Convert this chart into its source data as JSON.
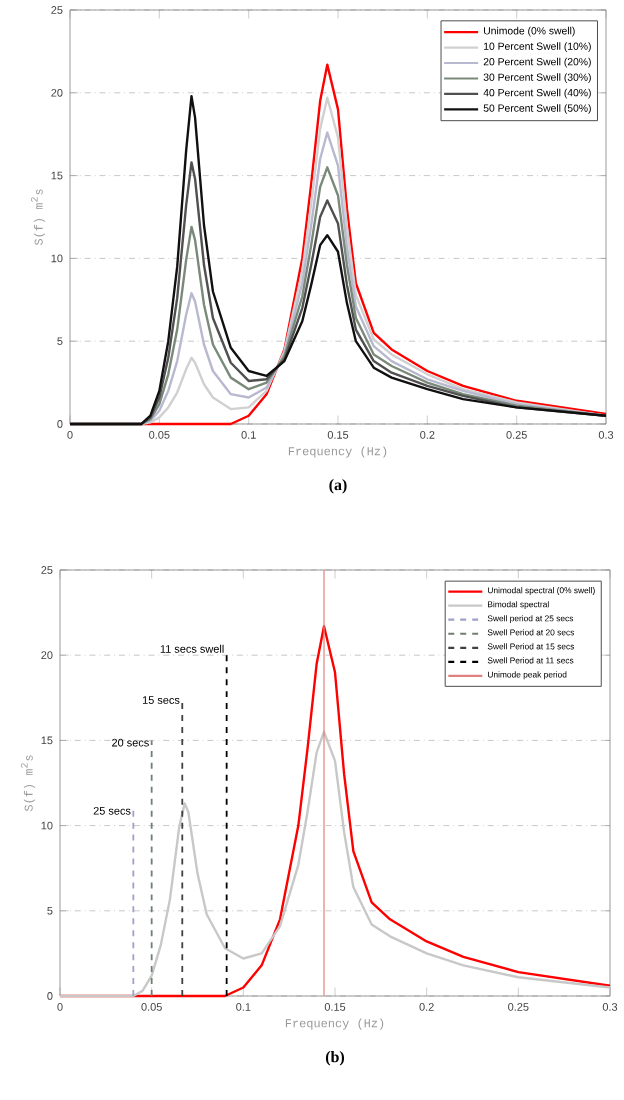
{
  "chart_data": [
    {
      "type": "line",
      "xlabel": "Frequency (Hz)",
      "ylabel": "S(f) m$^{2}$s",
      "annotations": [
        "(a)"
      ],
      "x": [
        0,
        0.04,
        0.045,
        0.05,
        0.055,
        0.06,
        0.065,
        0.068,
        0.07,
        0.075,
        0.08,
        0.09,
        0.1,
        0.11,
        0.12,
        0.13,
        0.135,
        0.14,
        0.144,
        0.15,
        0.155,
        0.16,
        0.17,
        0.18,
        0.2,
        0.22,
        0.25,
        0.3
      ],
      "xlim": [
        0,
        0.3
      ],
      "xticks": [
        0,
        0.05,
        0.1,
        0.15,
        0.2,
        0.25,
        0.3
      ],
      "ylim": [
        0,
        25
      ],
      "yticks": [
        0,
        5,
        10,
        15,
        20,
        25
      ],
      "grid": "y",
      "legend": "top right",
      "series": [
        {
          "name": "Unimode  (0% swell)",
          "color": "#ff0000",
          "values": [
            0,
            0,
            0,
            0,
            0,
            0,
            0,
            0,
            0,
            0,
            0,
            0,
            0.5,
            1.8,
            4.5,
            10,
            14.5,
            19.5,
            21.7,
            19,
            13,
            8.5,
            5.5,
            4.5,
            3.2,
            2.3,
            1.4,
            0.6
          ]
        },
        {
          "name": "10 Percent Swell (10%)",
          "color": "#d0d0d0",
          "values": [
            0,
            0,
            0.1,
            0.4,
            1,
            1.9,
            3.3,
            4,
            3.7,
            2.4,
            1.6,
            0.9,
            1.0,
            2.0,
            4.4,
            9.2,
            13.3,
            17.8,
            19.7,
            17.3,
            11.9,
            7.8,
            5.1,
            4.2,
            3.0,
            2.1,
            1.3,
            0.5
          ]
        },
        {
          "name": "20 Percent Swell (20%)",
          "color": "#b8b8d0",
          "values": [
            0,
            0,
            0.2,
            0.8,
            2,
            3.8,
            6.6,
            7.9,
            7.4,
            4.8,
            3.2,
            1.8,
            1.6,
            2.2,
            4.2,
            8.5,
            12.0,
            16.0,
            17.6,
            15.6,
            10.7,
            7.1,
            4.7,
            3.8,
            2.7,
            2.0,
            1.2,
            0.5
          ]
        },
        {
          "name": "30 Percent Swell (30%)",
          "color": "#7a8a7a",
          "values": [
            0,
            0,
            0.3,
            1.2,
            3,
            5.7,
            9.9,
            11.9,
            11.1,
            7.2,
            4.8,
            2.8,
            2.1,
            2.5,
            4.1,
            7.7,
            10.8,
            14.3,
            15.5,
            13.8,
            9.6,
            6.4,
            4.2,
            3.5,
            2.5,
            1.8,
            1.1,
            0.5
          ]
        },
        {
          "name": "40 Percent Swell (40%)",
          "color": "#505050",
          "values": [
            0,
            0,
            0.4,
            1.6,
            4,
            7.6,
            13.2,
            15.8,
            14.8,
            9.6,
            6.4,
            3.7,
            2.6,
            2.7,
            3.9,
            7.0,
            9.6,
            12.5,
            13.5,
            12.1,
            8.4,
            5.7,
            3.8,
            3.1,
            2.3,
            1.7,
            1.0,
            0.5
          ]
        },
        {
          "name": "50 Percent Swell (50%)",
          "color": "#101010",
          "values": [
            0,
            0,
            0.5,
            2,
            5,
            9.5,
            16.5,
            19.8,
            18.5,
            12,
            8,
            4.6,
            3.2,
            2.9,
            3.8,
            6.2,
            8.4,
            10.8,
            11.4,
            10.4,
            7.3,
            5.0,
            3.4,
            2.8,
            2.1,
            1.5,
            1.0,
            0.5
          ]
        }
      ]
    },
    {
      "type": "line",
      "xlabel": "Frequency (Hz)",
      "ylabel": "S(f) m$^{2}$s",
      "annotations": [
        "(b)",
        {
          "text": "25 secs",
          "x": 0.04,
          "y": 10.5
        },
        {
          "text": "20 secs",
          "x": 0.05,
          "y": 14.5
        },
        {
          "text": "15 secs",
          "x": 0.0667,
          "y": 17
        },
        {
          "text": "11 secs swell",
          "x": 0.0909,
          "y": 20
        }
      ],
      "x": [
        0,
        0.04,
        0.045,
        0.05,
        0.055,
        0.06,
        0.065,
        0.068,
        0.07,
        0.075,
        0.08,
        0.09,
        0.1,
        0.11,
        0.12,
        0.13,
        0.135,
        0.14,
        0.144,
        0.15,
        0.155,
        0.16,
        0.17,
        0.18,
        0.2,
        0.22,
        0.25,
        0.3
      ],
      "xlim": [
        0,
        0.3
      ],
      "xticks": [
        0,
        0.05,
        0.1,
        0.15,
        0.2,
        0.25,
        0.3
      ],
      "ylim": [
        0,
        25
      ],
      "yticks": [
        0,
        5,
        10,
        15,
        20,
        25
      ],
      "grid": "y",
      "legend": "top right",
      "series": [
        {
          "name": "Unimodal spectral  (0% swell)",
          "color": "#ff0000",
          "values": [
            0,
            0,
            0,
            0,
            0,
            0,
            0,
            0,
            0,
            0,
            0,
            0,
            0.5,
            1.8,
            4.5,
            10,
            14.5,
            19.5,
            21.7,
            19,
            13,
            8.5,
            5.5,
            4.5,
            3.2,
            2.3,
            1.4,
            0.6
          ]
        },
        {
          "name": "Bimodal spectral",
          "color": "#c8c8c8",
          "values": [
            0,
            0,
            0.3,
            1.2,
            3,
            5.7,
            9.9,
            11.3,
            10.8,
            7.2,
            4.8,
            2.8,
            2.2,
            2.5,
            4.1,
            7.7,
            10.8,
            14.3,
            15.5,
            13.8,
            9.6,
            6.4,
            4.2,
            3.5,
            2.5,
            1.8,
            1.1,
            0.5
          ]
        },
        {
          "name": "Swell period at 25 secs",
          "color": "#a0a0c8",
          "line_style": "dashed",
          "x": [
            0.04,
            0.04
          ],
          "values": [
            0,
            11
          ]
        },
        {
          "name": "Swell Period at 20 secs",
          "color": "#708070",
          "line_style": "dashed",
          "x": [
            0.05,
            0.05
          ],
          "values": [
            0,
            15
          ]
        },
        {
          "name": "Swell Period at 15 secs",
          "color": "#404040",
          "line_style": "dashed",
          "x": [
            0.0667,
            0.0667
          ],
          "values": [
            0,
            17.5
          ]
        },
        {
          "name": "Swell Period at 11 secs",
          "color": "#000000",
          "line_style": "dashed",
          "x": [
            0.0909,
            0.0909
          ],
          "values": [
            0,
            20
          ]
        },
        {
          "name": "Unimode peak period",
          "color": "#e08080",
          "x": [
            0.144,
            0.144
          ],
          "values": [
            0,
            25
          ]
        }
      ]
    }
  ]
}
